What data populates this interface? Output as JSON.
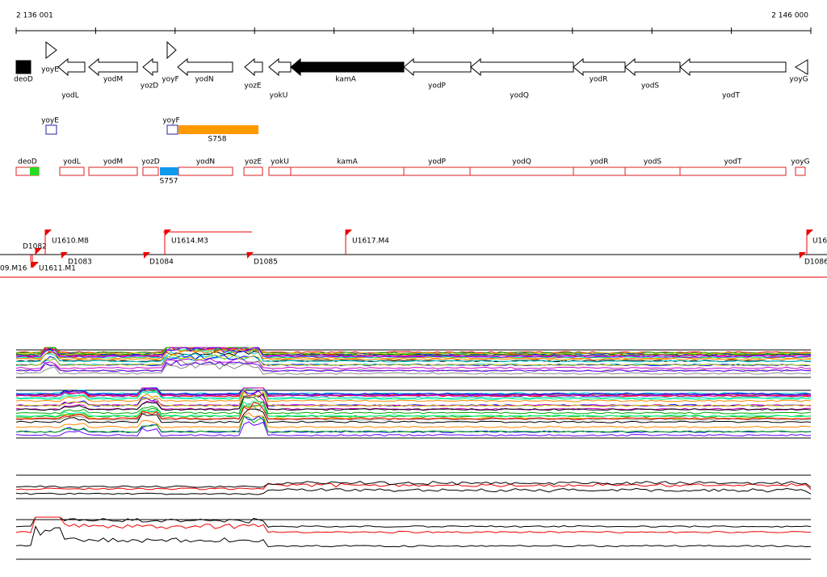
{
  "scale": {
    "start": "2 136 001",
    "end": "2 146 000"
  },
  "genes": [
    "deoD",
    "yoyE",
    "yodL",
    "yodM",
    "yozD",
    "yoyF",
    "yodN",
    "yozE",
    "yokU",
    "kamA",
    "yodP",
    "yodQ",
    "yodR",
    "yodS",
    "yodT",
    "yoyG"
  ],
  "small_features": [
    "yoyE",
    "yoyF",
    "S758"
  ],
  "transcripts": [
    "deoD",
    "yodL",
    "yodM",
    "yozD",
    "yodN",
    "yozE",
    "yokU",
    "kamA",
    "yodP",
    "yodQ",
    "yodR",
    "yodS",
    "yodT",
    "yoyG",
    "S757"
  ],
  "upstream_features": [
    "D1082",
    "U1610.M8",
    "U1614.M3",
    "U1617.M4",
    "U16",
    "09.M16",
    "U1611.M1",
    "D1083",
    "D1084",
    "D1085",
    "D1086"
  ]
}
